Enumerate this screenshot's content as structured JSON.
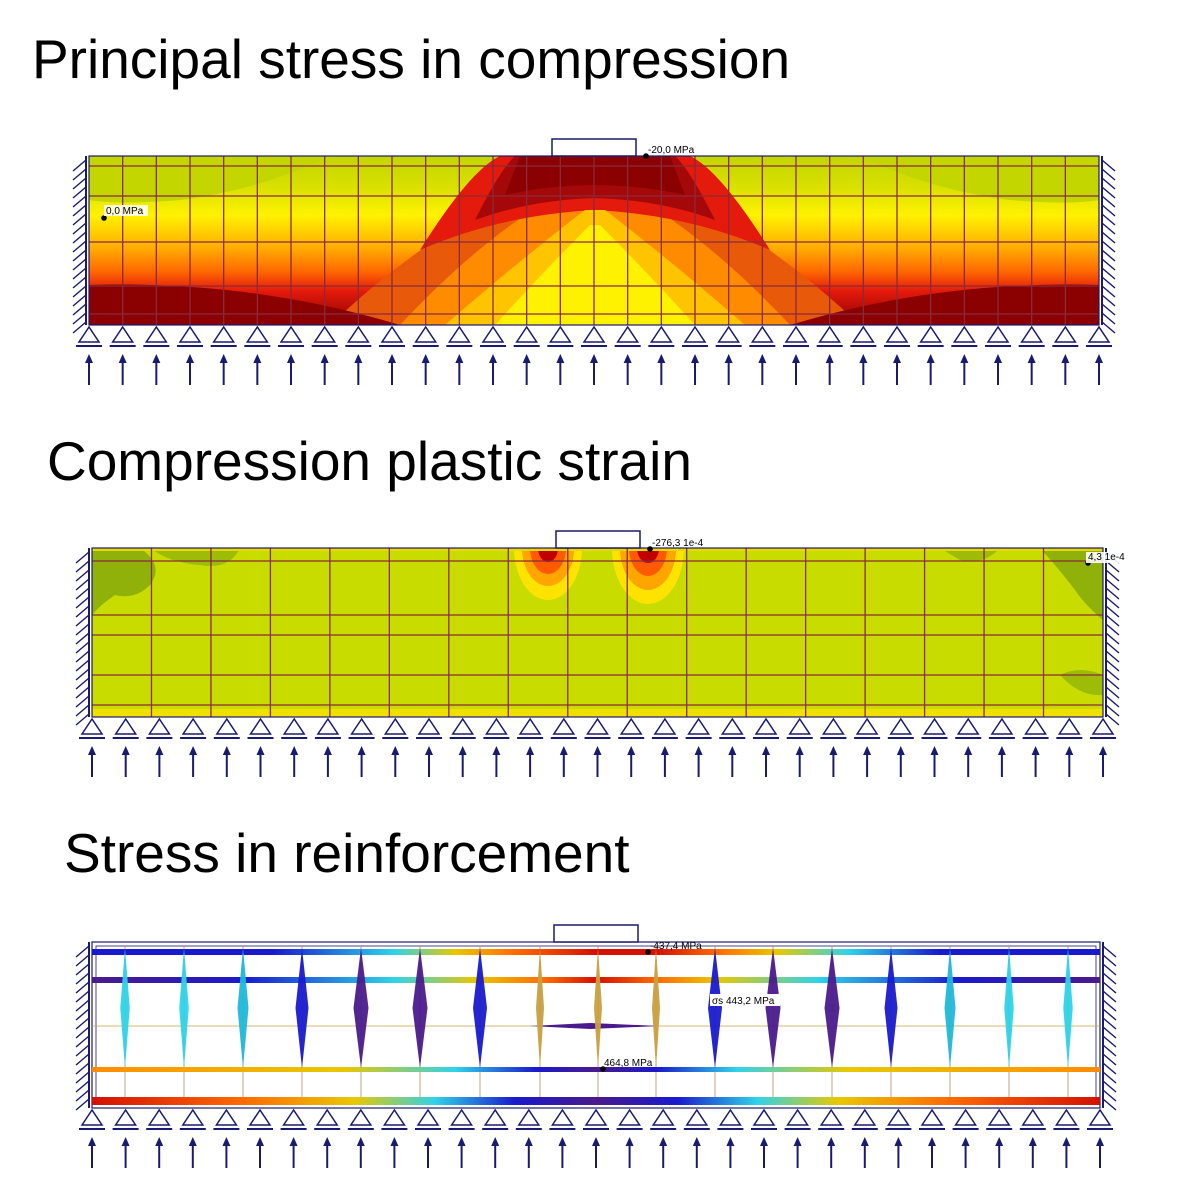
{
  "panels": [
    {
      "title": "Principal stress in compression",
      "annotations": [
        {
          "label": "-20,0 MPa"
        },
        {
          "label": "0,0 MPa"
        }
      ]
    },
    {
      "title": "Compression plastic strain",
      "annotations": [
        {
          "label": "-276,3 1e-4"
        },
        {
          "label": "4,3 1e-4"
        }
      ]
    },
    {
      "title": "Stress in reinforcement",
      "annotations": [
        {
          "label": "-437,4 MPa"
        },
        {
          "label": "σs 443,2 MPa"
        },
        {
          "label": "464,8 MPa"
        }
      ]
    }
  ],
  "colors": {
    "stress_dark": "#8b0000",
    "stress_red": "#e31a0c",
    "stress_orange": "#ff6a00",
    "stress_yellow": "#fff200",
    "stress_green": "#c3d600",
    "strain_green": "#c8dc00",
    "rebar_blue": "#1a1acd",
    "rebar_purple": "#4b1a8c",
    "rebar_cyan": "#2fd3e8",
    "rebar_red": "#d41000",
    "support_navy": "#1a1a6e",
    "grid_maroon": "#8a2a3a"
  }
}
